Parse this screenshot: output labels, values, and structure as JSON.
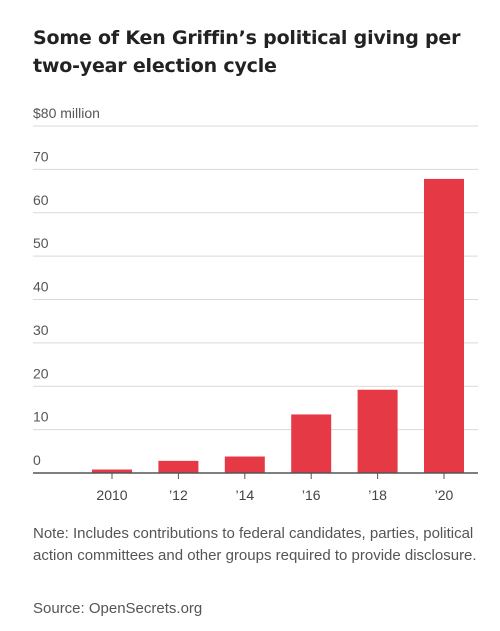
{
  "chart_data": {
    "type": "bar",
    "title": "Some of Ken Griffin’s political giving per two-year election cycle",
    "xlabel": "",
    "ylabel": "",
    "ylim": [
      0,
      80
    ],
    "y_ticks": [
      "0",
      "10",
      "20",
      "30",
      "40",
      "50",
      "60",
      "70",
      "$80 million"
    ],
    "y_tick_values": [
      0,
      10,
      20,
      30,
      40,
      50,
      60,
      70,
      80
    ],
    "categories": [
      "2010",
      "’12",
      "’14",
      "’16",
      "’18",
      "’20"
    ],
    "values": [
      0.8,
      2.8,
      3.8,
      13.5,
      19.2,
      67.8
    ],
    "grid": true,
    "bar_color": "#e63946"
  },
  "note": "Note: Includes contributions to federal candidates, parties, political action committees and other groups required to provide disclosure.",
  "source": "Source: OpenSecrets.org"
}
